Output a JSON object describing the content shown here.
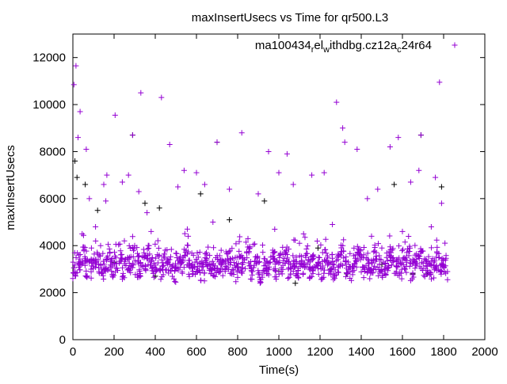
{
  "chart_data": {
    "type": "scatter",
    "title": "maxInsertUsecs vs Time for qr500.L3",
    "xlabel": "Time(s)",
    "ylabel": "maxInsertUsecs",
    "xlim": [
      0,
      2000
    ],
    "ylim": [
      0,
      13000
    ],
    "xticks": [
      0,
      200,
      400,
      600,
      800,
      1000,
      1200,
      1400,
      1600,
      1800,
      2000
    ],
    "yticks": [
      0,
      2000,
      4000,
      6000,
      8000,
      10000,
      12000
    ],
    "grid": false,
    "legend_position": "top-right",
    "series": [
      {
        "name": "ma100434_rel_withdbg.cz12a_c24r64",
        "color": "#9400d3",
        "band_x_start": 0,
        "band_x_step": 20,
        "band_y": [
          2900,
          3300,
          3600,
          3100,
          3000,
          3500,
          3200,
          2950,
          3400,
          3100,
          3300,
          3700,
          3000,
          3200,
          3450,
          3100,
          2900,
          3300,
          3600,
          3050,
          3250,
          3000,
          3400,
          3150,
          2800,
          3350,
          3100,
          3600,
          3000,
          3200,
          3300,
          2950,
          3500,
          3150,
          3050,
          3300,
          3000,
          3400,
          3200,
          2900,
          3300,
          3100,
          3550,
          3000,
          3250,
          2850,
          3350,
          3100,
          3400,
          3000,
          3200,
          3600,
          3050,
          3300,
          2900,
          3150,
          3450,
          3000,
          3250,
          3100,
          2950,
          3400,
          3200,
          3000,
          3300,
          3550,
          3100,
          2900,
          3250,
          3400,
          3050,
          3200,
          3000,
          3350,
          3150,
          2950,
          3300,
          3600,
          3100,
          3000,
          3250,
          3450,
          2900,
          3200,
          3350,
          3050,
          3150,
          3000,
          3300,
          3100,
          2950
        ],
        "points": [
          [
            0,
            2600
          ],
          [
            5,
            10850
          ],
          [
            15,
            11650
          ],
          [
            25,
            8600
          ],
          [
            35,
            9700
          ],
          [
            65,
            8100
          ],
          [
            80,
            6000
          ],
          [
            150,
            6600
          ],
          [
            160,
            5900
          ],
          [
            165,
            7000
          ],
          [
            205,
            9550
          ],
          [
            240,
            6700
          ],
          [
            270,
            7000
          ],
          [
            290,
            8700
          ],
          [
            320,
            6300
          ],
          [
            330,
            10500
          ],
          [
            360,
            5400
          ],
          [
            430,
            10300
          ],
          [
            470,
            8300
          ],
          [
            510,
            6500
          ],
          [
            540,
            7200
          ],
          [
            600,
            7100
          ],
          [
            640,
            6600
          ],
          [
            700,
            8400
          ],
          [
            760,
            6400
          ],
          [
            820,
            8800
          ],
          [
            900,
            6200
          ],
          [
            950,
            8000
          ],
          [
            1000,
            7100
          ],
          [
            1040,
            7900
          ],
          [
            1070,
            6600
          ],
          [
            1160,
            7000
          ],
          [
            1220,
            7100
          ],
          [
            1280,
            10100
          ],
          [
            1310,
            9000
          ],
          [
            1320,
            8400
          ],
          [
            1380,
            8100
          ],
          [
            1430,
            6000
          ],
          [
            1480,
            6400
          ],
          [
            1540,
            8200
          ],
          [
            1580,
            8600
          ],
          [
            1640,
            6700
          ],
          [
            1680,
            7200
          ],
          [
            1690,
            8700
          ],
          [
            1760,
            6900
          ],
          [
            1780,
            10950
          ],
          [
            1790,
            5800
          ],
          [
            45,
            4500
          ],
          [
            110,
            4800
          ],
          [
            250,
            4200
          ],
          [
            380,
            4600
          ],
          [
            560,
            4400
          ],
          [
            680,
            5000
          ],
          [
            850,
            4300
          ],
          [
            980,
            4700
          ],
          [
            1120,
            4500
          ],
          [
            1260,
            4900
          ],
          [
            1450,
            4400
          ],
          [
            1600,
            4600
          ],
          [
            1740,
            4800
          ],
          [
            90,
            3900
          ],
          [
            300,
            4000
          ],
          [
            720,
            3800
          ],
          [
            1100,
            4100
          ],
          [
            1500,
            3900
          ]
        ]
      },
      {
        "name": "",
        "color": "#000000",
        "points": [
          [
            10,
            7600
          ],
          [
            20,
            6900
          ],
          [
            60,
            6600
          ],
          [
            120,
            5500
          ],
          [
            290,
            8700
          ],
          [
            350,
            5800
          ],
          [
            420,
            5600
          ],
          [
            620,
            6200
          ],
          [
            700,
            8400
          ],
          [
            760,
            5100
          ],
          [
            930,
            5900
          ],
          [
            1080,
            2400
          ],
          [
            1190,
            3900
          ],
          [
            1330,
            2800
          ],
          [
            1560,
            6600
          ],
          [
            1690,
            8700
          ],
          [
            1790,
            6500
          ],
          [
            1500,
            3200
          ],
          [
            800,
            3100
          ],
          [
            400,
            2700
          ],
          [
            200,
            3300
          ],
          [
            1000,
            2900
          ],
          [
            1250,
            3000
          ],
          [
            1650,
            2800
          ],
          [
            1720,
            2800
          ]
        ]
      }
    ]
  }
}
